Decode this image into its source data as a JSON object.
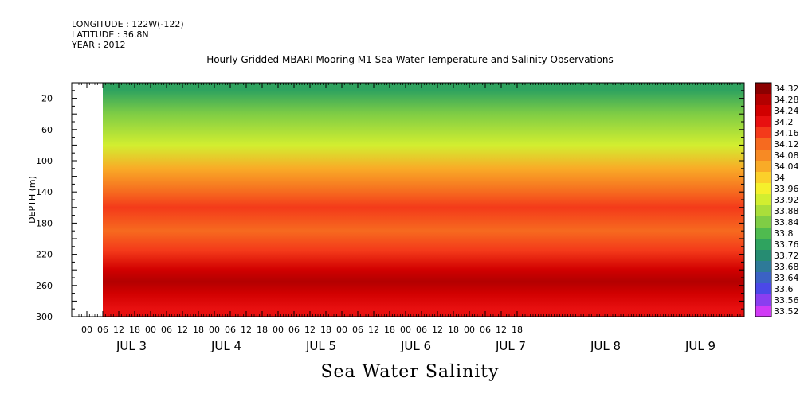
{
  "header": {
    "longitude": "LONGITUDE : 122W(-122)",
    "latitude": "LATITUDE : 36.8N",
    "year": "YEAR : 2012",
    "title": "Hourly Gridded MBARI Mooring M1 Sea Water Temperature and Salinity Observations",
    "variable": "Sea Water Salinity"
  },
  "chart_data": {
    "type": "heatmap",
    "title": "Hourly Gridded MBARI Mooring M1 Sea Water Temperature and Salinity Observations",
    "xlabel": "",
    "ylabel": "DEPTH (m)",
    "ylim": [
      300,
      0
    ],
    "y_ticks": [
      "20",
      "60",
      "100",
      "140",
      "180",
      "220",
      "260",
      "300"
    ],
    "x_hour_ticks": [
      "00",
      "06",
      "12",
      "18",
      "00",
      "06",
      "12",
      "18",
      "00",
      "06",
      "12",
      "18",
      "00",
      "06",
      "12",
      "18",
      "00",
      "06",
      "12",
      "18",
      "00",
      "06",
      "12",
      "18",
      "00",
      "06",
      "12",
      "18"
    ],
    "x_day_labels": [
      "JUL  3",
      "JUL  4",
      "JUL  5",
      "JUL  6",
      "JUL  7",
      "JUL  8",
      "JUL  9"
    ],
    "colorbar_levels": [
      "34.32",
      "34.28",
      "34.24",
      "34.2",
      "34.16",
      "34.12",
      "34.08",
      "34.04",
      "34",
      "33.96",
      "33.92",
      "33.88",
      "33.84",
      "33.8",
      "33.76",
      "33.72",
      "33.68",
      "33.64",
      "33.6",
      "33.56",
      "33.52"
    ],
    "colorbar_colors": [
      "#8b0000",
      "#b30000",
      "#d10000",
      "#e81010",
      "#f43a1a",
      "#f66a1f",
      "#f78a24",
      "#f9ab27",
      "#fbd02a",
      "#f5f02c",
      "#d2ee30",
      "#aade3a",
      "#7fcd45",
      "#4fbb4f",
      "#2fa35f",
      "#268c72",
      "#2e7a98",
      "#3b62c4",
      "#4b48e8",
      "#8a3ef0",
      "#d03af5"
    ],
    "depths": [
      10,
      40,
      80,
      110,
      140,
      160,
      190,
      215,
      240,
      255,
      270,
      290
    ],
    "salinity_profile": [
      33.74,
      33.82,
      33.92,
      34.04,
      34.12,
      34.14,
      34.1,
      34.14,
      34.24,
      34.28,
      34.24,
      34.2
    ]
  }
}
